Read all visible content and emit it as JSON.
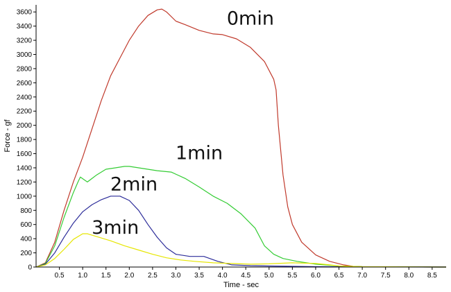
{
  "chart_data": {
    "type": "line",
    "xlabel": "Time - sec",
    "ylabel": "Force - gf",
    "xlim": [
      0,
      8.8
    ],
    "ylim": [
      0,
      3700
    ],
    "x_ticks": [
      0.5,
      1.0,
      1.5,
      2.0,
      2.5,
      3.0,
      3.5,
      4.0,
      4.5,
      5.0,
      5.5,
      6.0,
      6.5,
      7.0,
      7.5,
      8.0,
      8.5
    ],
    "x_tick_labels": [
      "0.5",
      "1.0",
      "1.5",
      "2.0",
      "2.5",
      "3.0",
      "3.5",
      "4.0",
      "4.5",
      "5.0",
      "5.5",
      "6.0",
      "6.5",
      "7.0",
      "7.5",
      "8.0",
      "8.5"
    ],
    "y_ticks": [
      0,
      200,
      400,
      600,
      800,
      1000,
      1200,
      1400,
      1600,
      1800,
      2000,
      2200,
      2400,
      2600,
      2800,
      3000,
      3200,
      3400,
      3600
    ],
    "y_tick_labels": [
      "0",
      "200",
      "400",
      "600",
      "800",
      "1000",
      "1200",
      "1400",
      "1600",
      "1800",
      "2000",
      "2200",
      "2400",
      "2600",
      "2800",
      "3000",
      "3200",
      "3400",
      "3600"
    ],
    "grid": false,
    "legend": "none",
    "series": [
      {
        "name": "0min",
        "color": "#c0392b",
        "label_pos": [
          4.6,
          3420
        ],
        "x": [
          0,
          0.2,
          0.4,
          0.6,
          0.8,
          1.0,
          1.2,
          1.4,
          1.6,
          1.8,
          2.0,
          2.2,
          2.4,
          2.6,
          2.7,
          2.8,
          3.0,
          3.2,
          3.5,
          3.8,
          4.0,
          4.3,
          4.6,
          4.9,
          5.1,
          5.15,
          5.2,
          5.3,
          5.4,
          5.5,
          5.7,
          6.0,
          6.3,
          6.6,
          6.8,
          7.0,
          8.8
        ],
        "y": [
          0,
          60,
          350,
          800,
          1200,
          1550,
          1950,
          2350,
          2700,
          2950,
          3200,
          3400,
          3550,
          3630,
          3640,
          3600,
          3470,
          3420,
          3340,
          3290,
          3280,
          3220,
          3100,
          2900,
          2650,
          2500,
          2000,
          1300,
          850,
          600,
          350,
          170,
          80,
          30,
          10,
          5,
          0
        ]
      },
      {
        "name": "1min",
        "color": "#33cc33",
        "label_pos": [
          3.5,
          1520
        ],
        "x": [
          0,
          0.2,
          0.4,
          0.6,
          0.8,
          0.9,
          0.95,
          1.1,
          1.3,
          1.5,
          1.7,
          1.9,
          2.0,
          2.3,
          2.6,
          2.9,
          3.2,
          3.5,
          3.8,
          4.1,
          4.4,
          4.7,
          4.9,
          5.1,
          5.3,
          5.6,
          6.0,
          6.5,
          7.0,
          8.8
        ],
        "y": [
          0,
          50,
          300,
          700,
          1050,
          1200,
          1270,
          1200,
          1300,
          1380,
          1400,
          1420,
          1420,
          1390,
          1360,
          1340,
          1250,
          1130,
          1000,
          900,
          750,
          550,
          300,
          180,
          120,
          80,
          40,
          15,
          5,
          0
        ]
      },
      {
        "name": "2min",
        "color": "#2b2b99",
        "label_pos": [
          2.1,
          1080
        ],
        "x": [
          0,
          0.2,
          0.4,
          0.6,
          0.8,
          1.0,
          1.2,
          1.4,
          1.6,
          1.8,
          2.0,
          2.2,
          2.4,
          2.6,
          2.8,
          3.0,
          3.3,
          3.6,
          3.9,
          4.2,
          4.6,
          5.0,
          5.5,
          6.0,
          7.0,
          8.8
        ],
        "y": [
          0,
          40,
          200,
          420,
          620,
          780,
          880,
          950,
          1000,
          1000,
          940,
          800,
          600,
          420,
          270,
          180,
          150,
          150,
          80,
          30,
          20,
          15,
          10,
          5,
          2,
          0
        ]
      },
      {
        "name": "3min",
        "color": "#e6e600",
        "label_pos": [
          1.7,
          470
        ],
        "x": [
          0,
          0.2,
          0.4,
          0.6,
          0.8,
          1.0,
          1.1,
          1.3,
          1.6,
          1.9,
          2.2,
          2.5,
          2.8,
          3.1,
          3.4,
          3.8,
          4.2,
          4.6,
          5.0,
          5.5,
          6.0,
          6.3,
          6.5,
          7.0,
          8.8
        ],
        "y": [
          0,
          30,
          120,
          250,
          390,
          470,
          470,
          430,
          370,
          300,
          240,
          180,
          130,
          100,
          80,
          60,
          50,
          40,
          45,
          60,
          50,
          30,
          15,
          5,
          0
        ]
      }
    ]
  }
}
